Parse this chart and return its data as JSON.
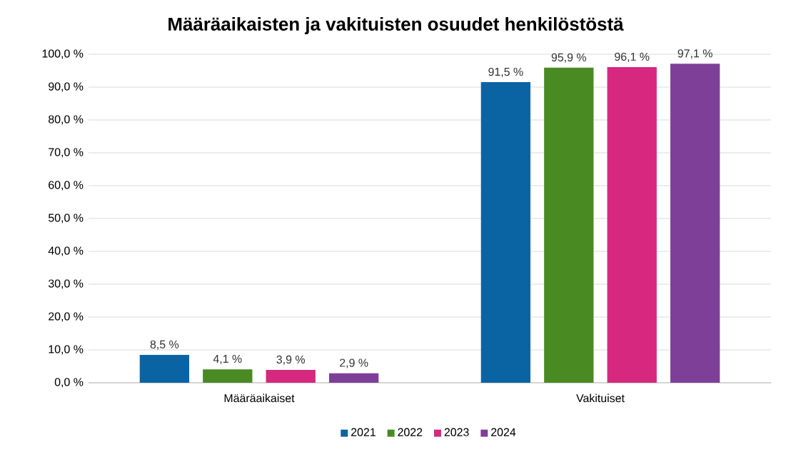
{
  "chart_data": {
    "type": "bar",
    "title": "Määräaikaisten ja vakituisten osuudet henkilöstöstä",
    "categories": [
      "Määräaikaiset",
      "Vakituiset"
    ],
    "series": [
      {
        "name": "2021",
        "color": "#0a64a4",
        "values": [
          8.5,
          91.5
        ],
        "value_labels": [
          "8,5 %",
          "91,5 %"
        ]
      },
      {
        "name": "2022",
        "color": "#4a8a22",
        "values": [
          4.1,
          95.9
        ],
        "value_labels": [
          "4,1 %",
          "95,9 %"
        ]
      },
      {
        "name": "2023",
        "color": "#d6287f",
        "values": [
          3.9,
          96.1
        ],
        "value_labels": [
          "3,9 %",
          "96,1 %"
        ]
      },
      {
        "name": "2024",
        "color": "#7e3f98",
        "values": [
          2.9,
          97.1
        ],
        "value_labels": [
          "2,9 %",
          "97,1 %"
        ]
      }
    ],
    "ylim": [
      0,
      100
    ],
    "yticks": [
      {
        "value": 0,
        "label": "0,0 %"
      },
      {
        "value": 10,
        "label": "10,0 %"
      },
      {
        "value": 20,
        "label": "20,0 %"
      },
      {
        "value": 30,
        "label": "30,0 %"
      },
      {
        "value": 40,
        "label": "40,0 %"
      },
      {
        "value": 50,
        "label": "50,0 %"
      },
      {
        "value": 60,
        "label": "60,0 %"
      },
      {
        "value": 70,
        "label": "70,0 %"
      },
      {
        "value": 80,
        "label": "80,0 %"
      },
      {
        "value": 90,
        "label": "90,0 %"
      },
      {
        "value": 100,
        "label": "100,0 %"
      }
    ],
    "grid": "y",
    "legend": "bottom"
  }
}
